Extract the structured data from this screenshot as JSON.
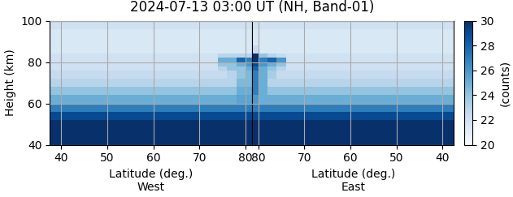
{
  "chart_data": {
    "type": "heatmap",
    "title": "2024-07-13 03:00 UT (NH, Band-01)",
    "ylabel": "Height (km)",
    "ylim": [
      40,
      100
    ],
    "yticks": [
      40,
      60,
      80,
      100
    ],
    "grid": true,
    "color": "Blues",
    "colorbar": {
      "label": "(counts)",
      "lim": [
        20,
        30
      ],
      "ticks": [
        20,
        22,
        24,
        26,
        28,
        30
      ]
    },
    "y_edges": [
      40,
      52,
      56,
      60,
      64,
      68,
      72,
      76,
      78,
      80,
      82,
      84,
      88,
      92,
      96,
      100
    ],
    "panels": [
      {
        "xlabel": "Latitude (deg.)\nWest",
        "xlim": [
          37.5,
          81.4
        ],
        "xticks": [
          40,
          50,
          60,
          70,
          80
        ],
        "x_edges": [
          37.5,
          42,
          46,
          50,
          54,
          58,
          62,
          66,
          70,
          74,
          76,
          78,
          80,
          81.4
        ],
        "cells": [
          [
            30,
            30,
            30,
            30,
            30,
            30,
            30,
            30,
            30,
            30,
            30,
            30,
            30
          ],
          [
            29,
            29,
            29,
            29,
            29,
            29,
            29,
            29,
            29,
            29,
            29,
            29,
            29
          ],
          [
            27,
            27,
            27,
            27,
            27,
            27,
            27,
            27,
            27,
            27,
            27,
            27,
            27
          ],
          [
            25,
            25,
            25,
            25,
            25,
            25,
            25,
            25,
            25,
            25,
            25,
            25.5,
            25.5
          ],
          [
            24,
            24,
            24,
            24,
            24,
            24,
            24,
            24,
            24,
            24,
            24,
            25,
            25
          ],
          [
            23,
            23,
            23,
            23,
            23,
            23,
            23,
            23,
            23,
            23,
            23,
            24.5,
            24.5
          ],
          [
            22.5,
            22.5,
            22.5,
            22.5,
            22.5,
            22.5,
            22.5,
            22.5,
            22.5,
            22.5,
            23,
            24,
            24.5
          ],
          [
            22,
            22,
            22,
            22,
            22,
            22,
            22,
            22,
            22,
            23,
            24,
            24,
            25
          ],
          [
            22,
            22,
            22,
            22,
            22,
            22,
            22,
            22,
            22,
            24,
            24,
            25,
            26
          ],
          [
            22,
            22,
            22,
            22,
            22,
            22,
            22,
            22,
            22,
            25,
            25,
            28,
            27
          ],
          [
            22,
            22,
            22,
            22,
            22,
            22,
            22,
            22,
            22,
            23,
            23,
            23,
            23
          ],
          [
            21.5,
            21.5,
            21.5,
            21.5,
            21.5,
            21.5,
            21.5,
            21.5,
            21.5,
            21.5,
            21.5,
            21.5,
            21.5
          ],
          [
            21.5,
            21.5,
            21.5,
            21.5,
            21.5,
            21.5,
            21.5,
            21.5,
            21.5,
            21.5,
            21.5,
            21.5,
            21.5
          ],
          [
            21.5,
            21.5,
            21.5,
            21.5,
            21.5,
            21.5,
            21.5,
            21.5,
            21.5,
            21.5,
            21.5,
            21.5,
            21.5
          ],
          [
            22,
            22,
            22,
            22,
            22,
            22,
            22,
            22,
            22,
            22,
            22,
            22,
            22
          ]
        ]
      },
      {
        "xlabel": "Latitude (deg.)\nEast",
        "xlim": [
          81.4,
          37.5
        ],
        "xticks": [
          80,
          70,
          60,
          50,
          40
        ],
        "x_edges": [
          37.5,
          42,
          46,
          50,
          54,
          58,
          62,
          66,
          70,
          74,
          76,
          78,
          80,
          81.4
        ],
        "cells": [
          [
            30,
            30,
            30,
            30,
            30,
            30,
            30,
            30,
            30,
            30,
            30,
            30,
            30
          ],
          [
            29,
            29,
            29,
            29,
            29,
            29,
            29,
            29,
            29,
            29,
            29,
            29,
            29
          ],
          [
            27,
            27,
            27,
            27,
            27,
            27,
            27,
            27,
            27,
            27,
            27,
            27,
            27
          ],
          [
            25,
            25,
            25,
            25,
            25,
            25,
            25,
            25,
            25,
            25,
            25,
            25,
            26
          ],
          [
            24,
            24,
            24,
            24,
            24,
            24,
            24,
            24,
            24,
            24,
            24,
            25,
            27
          ],
          [
            23,
            23,
            23,
            23,
            23,
            23,
            23,
            23,
            23,
            23,
            23,
            25,
            27
          ],
          [
            22.5,
            22.5,
            22.5,
            22.5,
            22.5,
            22.5,
            22.5,
            22.5,
            22.5,
            22.5,
            23.5,
            25,
            27
          ],
          [
            22,
            22,
            22,
            22,
            22,
            22,
            22,
            22,
            22,
            23,
            24,
            25,
            28
          ],
          [
            22,
            22,
            22,
            22,
            22,
            22,
            22,
            22,
            22,
            24,
            25,
            26,
            29
          ],
          [
            22,
            22,
            22,
            22,
            22,
            22,
            22,
            22,
            22,
            26,
            28,
            27,
            30
          ],
          [
            22,
            22,
            22,
            22,
            22,
            22,
            22,
            22,
            22,
            22.5,
            23,
            24,
            30
          ],
          [
            21.5,
            21.5,
            21.5,
            21.5,
            21.5,
            21.5,
            21.5,
            21.5,
            21.5,
            21.5,
            21.5,
            21.5,
            22.5
          ],
          [
            21.5,
            21.5,
            21.5,
            21.5,
            21.5,
            21.5,
            21.5,
            21.5,
            21.5,
            21.5,
            21.5,
            21.5,
            21.5
          ],
          [
            21.5,
            21.5,
            21.5,
            21.5,
            21.5,
            21.5,
            21.5,
            21.5,
            21.5,
            21.5,
            21.5,
            21.5,
            21.5
          ],
          [
            22,
            22,
            22,
            22,
            22,
            22,
            22,
            22,
            22,
            22,
            22,
            22,
            22
          ]
        ]
      }
    ]
  }
}
